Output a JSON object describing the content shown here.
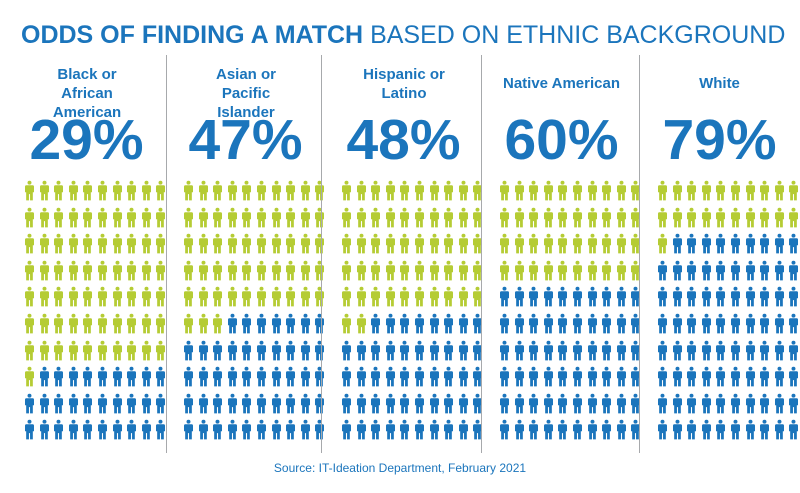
{
  "header": {
    "title_bold": "ODDS OF FINDING A MATCH",
    "title_light": "BASED ON ETHNIC BACKGROUND"
  },
  "colors": {
    "match": "#1b75bc",
    "no_match": "#b5cc34",
    "text": "#1b75bc"
  },
  "icon": "person-icon",
  "chart_data": {
    "type": "pictograph",
    "title": "ODDS OF FINDING A MATCH BASED ON ETHNIC BACKGROUND",
    "unit": "percent",
    "icons_per_group": 100,
    "categories": [
      "Black or African American",
      "Asian or Pacific Islander",
      "Hispanic or Latino",
      "Native American",
      "White"
    ],
    "values": [
      29,
      47,
      48,
      60,
      79
    ],
    "groups": [
      {
        "label": "Black or African American",
        "value": 29,
        "value_label": "29%"
      },
      {
        "label": "Asian or Pacific Islander",
        "value": 47,
        "value_label": "47%"
      },
      {
        "label": "Hispanic or Latino",
        "value": 48,
        "value_label": "48%"
      },
      {
        "label": "Native American",
        "value": 60,
        "value_label": "60%"
      },
      {
        "label": "White",
        "value": 79,
        "value_label": "79%"
      }
    ]
  },
  "footer": {
    "source": "Source: IT-Ideation Department, February 2021"
  }
}
